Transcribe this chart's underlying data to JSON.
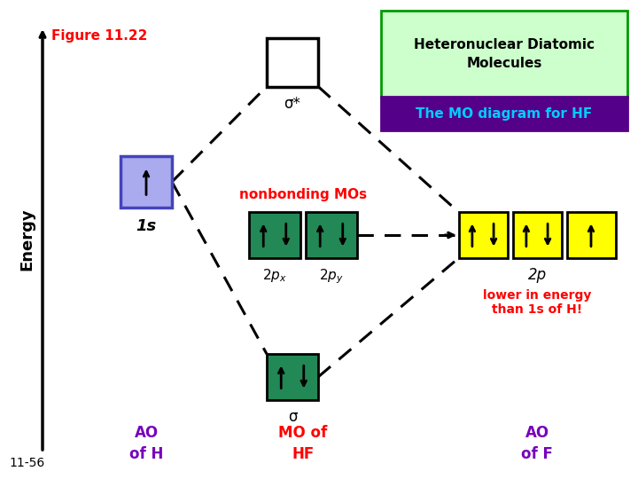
{
  "title1": "Heteronuclear Diatomic\nMolecules",
  "subtitle": "The MO diagram for HF",
  "figure_label": "Figure 11.22",
  "slide_label": "11-56",
  "bg_color": "#ffffff",
  "title_box_color": "#ccffcc",
  "title_box_edge": "#009900",
  "subtitle_box_color": "#550088",
  "subtitle_text_color": "#00ccff",
  "energy_label": "Energy",
  "ao_h_label": "AO\nof H",
  "ao_f_label": "AO\nof F",
  "mo_hf_label": "MO of\nHF",
  "nonbonding_label": "nonbonding MOs",
  "sigma_star_label": "σ*",
  "sigma_label": "σ",
  "label_2p": "2p",
  "lower_energy_text": "lower in energy\nthan 1s of H!",
  "h_1s_box_facecolor": "#aaaaee",
  "h_1s_box_edgecolor": "#4444bb",
  "h_1s_label": "1s",
  "sigma_star_box_facecolor": "#ffffff",
  "sigma_star_box_edgecolor": "#000000",
  "nonbonding_box_color": "#228855",
  "sigma_box_color": "#228855",
  "f_2p_box_color": "#ffff00",
  "dashed_color": "#000000",
  "fig_label_color": "#ff0000",
  "slide_label_color": "#000000",
  "ao_label_color": "#7700bb",
  "mo_label_color": "#ff0000",
  "nonbonding_label_color": "#ff0000",
  "lower_energy_color": "#ff0000"
}
